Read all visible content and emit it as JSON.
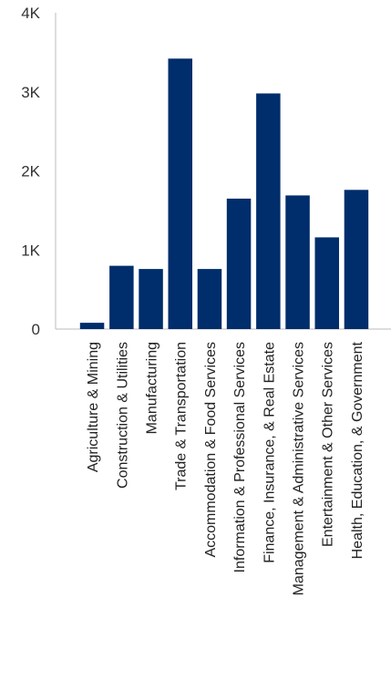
{
  "chart_data": {
    "type": "bar",
    "categories": [
      "Agriculture & Mining",
      "Construction & Utilities",
      "Manufacturing",
      "Trade & Transportation",
      "Accommodation & Food Services",
      "Information & Professional Services",
      "Finance, Insurance, & Real Estate",
      "Management & Administrative Services",
      "Entertainment &  Other Services",
      "Health, Education, & Government"
    ],
    "values": [
      80,
      800,
      760,
      3420,
      760,
      1650,
      2980,
      1690,
      1160,
      1760
    ],
    "ylim": [
      0,
      4000
    ],
    "yticks": [
      0,
      1000,
      2000,
      3000,
      4000
    ],
    "ytick_labels": [
      "0",
      "1K",
      "2K",
      "3K",
      "4K"
    ],
    "grid": false,
    "legend": "none",
    "bar_color": "#002d6b",
    "axis_color": "#bbbbbb"
  }
}
